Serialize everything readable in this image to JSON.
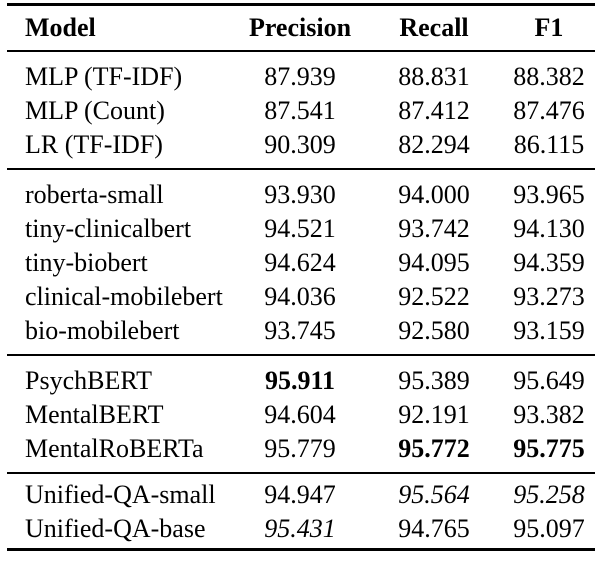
{
  "table": {
    "columns": [
      "Model",
      "Precision",
      "Recall",
      "F1"
    ],
    "text_color": "#000000",
    "background_color": "#ffffff",
    "rule_color": "#000000",
    "sections": [
      {
        "name": "feature-baselines",
        "rows": [
          {
            "model": "MLP (TF-IDF)",
            "model_style": "normal",
            "values": [
              {
                "v": "87.939",
                "s": "normal"
              },
              {
                "v": "88.831",
                "s": "normal"
              },
              {
                "v": "88.382",
                "s": "normal"
              }
            ]
          },
          {
            "model": "MLP (Count)",
            "model_style": "normal",
            "values": [
              {
                "v": "87.541",
                "s": "normal"
              },
              {
                "v": "87.412",
                "s": "normal"
              },
              {
                "v": "87.476",
                "s": "normal"
              }
            ]
          },
          {
            "model": "LR (TF-IDF)",
            "model_style": "normal",
            "values": [
              {
                "v": "90.309",
                "s": "normal"
              },
              {
                "v": "82.294",
                "s": "normal"
              },
              {
                "v": "86.115",
                "s": "normal"
              }
            ]
          }
        ]
      },
      {
        "name": "compact-transformers",
        "rows": [
          {
            "model": "roberta-small",
            "model_style": "normal",
            "values": [
              {
                "v": "93.930",
                "s": "normal"
              },
              {
                "v": "94.000",
                "s": "normal"
              },
              {
                "v": "93.965",
                "s": "normal"
              }
            ]
          },
          {
            "model": "tiny-clinicalbert",
            "model_style": "normal",
            "values": [
              {
                "v": "94.521",
                "s": "normal"
              },
              {
                "v": "93.742",
                "s": "normal"
              },
              {
                "v": "94.130",
                "s": "normal"
              }
            ]
          },
          {
            "model": "tiny-biobert",
            "model_style": "normal",
            "values": [
              {
                "v": "94.624",
                "s": "normal"
              },
              {
                "v": "94.095",
                "s": "normal"
              },
              {
                "v": "94.359",
                "s": "normal"
              }
            ]
          },
          {
            "model": "clinical-mobilebert",
            "model_style": "normal",
            "values": [
              {
                "v": "94.036",
                "s": "normal"
              },
              {
                "v": "92.522",
                "s": "normal"
              },
              {
                "v": "93.273",
                "s": "normal"
              }
            ]
          },
          {
            "model": "bio-mobilebert",
            "model_style": "normal",
            "values": [
              {
                "v": "93.745",
                "s": "normal"
              },
              {
                "v": "92.580",
                "s": "normal"
              },
              {
                "v": "93.159",
                "s": "normal"
              }
            ]
          }
        ]
      },
      {
        "name": "mental-health-berts",
        "rows": [
          {
            "model": "PsychBERT",
            "model_style": "normal",
            "values": [
              {
                "v": "95.911",
                "s": "bold"
              },
              {
                "v": "95.389",
                "s": "normal"
              },
              {
                "v": "95.649",
                "s": "normal"
              }
            ]
          },
          {
            "model": "MentalBERT",
            "model_style": "normal",
            "values": [
              {
                "v": "94.604",
                "s": "normal"
              },
              {
                "v": "92.191",
                "s": "normal"
              },
              {
                "v": "93.382",
                "s": "normal"
              }
            ]
          },
          {
            "model": "MentalRoBERTa",
            "model_style": "normal",
            "values": [
              {
                "v": "95.779",
                "s": "normal"
              },
              {
                "v": "95.772",
                "s": "bold"
              },
              {
                "v": "95.775",
                "s": "bold"
              }
            ]
          }
        ]
      },
      {
        "name": "unified-qa",
        "rows": [
          {
            "model": "Unified-QA-small",
            "model_style": "normal",
            "values": [
              {
                "v": "94.947",
                "s": "normal"
              },
              {
                "v": "95.564",
                "s": "italic"
              },
              {
                "v": "95.258",
                "s": "italic"
              }
            ]
          },
          {
            "model": "Unified-QA-base",
            "model_style": "normal",
            "values": [
              {
                "v": "95.431",
                "s": "italic"
              },
              {
                "v": "94.765",
                "s": "normal"
              },
              {
                "v": "95.097",
                "s": "normal"
              }
            ]
          }
        ]
      }
    ]
  }
}
